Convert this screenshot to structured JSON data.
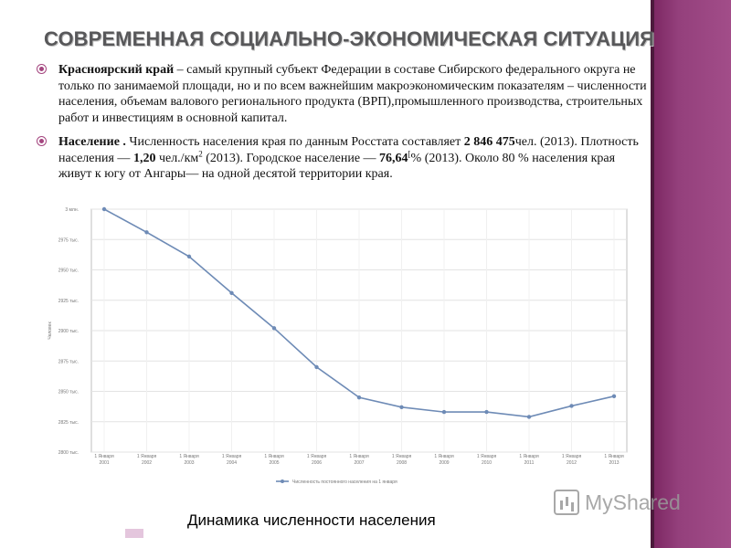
{
  "slide": {
    "title": "СОВРЕМЕННАЯ СОЦИАЛЬНО-ЭКОНОМИЧЕСКАЯ СИТУАЦИЯ",
    "bullets": [
      {
        "lead": "Красноярский край",
        "text": " – самый крупный субъект Федерации в составе Сибирского федерального округа не только по занимаемой площади, но и по всем важнейшим макроэкономическим показателям – численности населения, объемам валового регионального продукта (ВРП),промышленного производства, строительных работ и инвестициям в основной капитал."
      },
      {
        "lead": "Население .",
        "p1": " Численность населения края по данным Росстата составляет ",
        "population": "2 846 475",
        "p2": "чел. (2013). Плотность населения — ",
        "density": "1,20",
        "p3": " чел./км",
        "sup_area": "2",
        "p4": " (2013). Городское население — ",
        "urban": "76,64",
        "sup_ref": "[",
        "p5": "% (2013). Около 80 % населения края живут к югу от Ангары— на одной десятой территории края."
      }
    ]
  },
  "chart_caption": "Динамика численности населения",
  "watermark": {
    "icon": "myshared-logo-icon",
    "text": "MyShared"
  },
  "colors": {
    "accent": "#a4467f",
    "side_band": "#94407c",
    "series_line": "#6e8bb6"
  },
  "chart_data": {
    "type": "line",
    "ylabel": "Человек",
    "y_ticks": [
      "2800 тыс.",
      "2825 тыс.",
      "2850 тыс.",
      "2875 тыс.",
      "2900 тыс.",
      "2925 тыс.",
      "2950 тыс.",
      "2975 тыс.",
      "3 млн."
    ],
    "ylim": [
      2800,
      3000
    ],
    "categories": [
      [
        "1 Января",
        "2001"
      ],
      [
        "1 Января",
        "2002"
      ],
      [
        "1 Января",
        "2003"
      ],
      [
        "1 Января",
        "2004"
      ],
      [
        "1 Января",
        "2005"
      ],
      [
        "1 Января",
        "2006"
      ],
      [
        "1 Января",
        "2007"
      ],
      [
        "1 Января",
        "2008"
      ],
      [
        "1 Января",
        "2009"
      ],
      [
        "1 Января",
        "2010"
      ],
      [
        "1 Января",
        "2011"
      ],
      [
        "1 Января",
        "2012"
      ],
      [
        "1 Января",
        "2013"
      ]
    ],
    "series": [
      {
        "name": "Численность постоянного населения на 1 января",
        "values": [
          3000,
          2981,
          2961,
          2931,
          2902,
          2870,
          2845,
          2837,
          2833,
          2833,
          2829,
          2838,
          2846
        ]
      }
    ],
    "grid": true,
    "legend": "bottom"
  }
}
